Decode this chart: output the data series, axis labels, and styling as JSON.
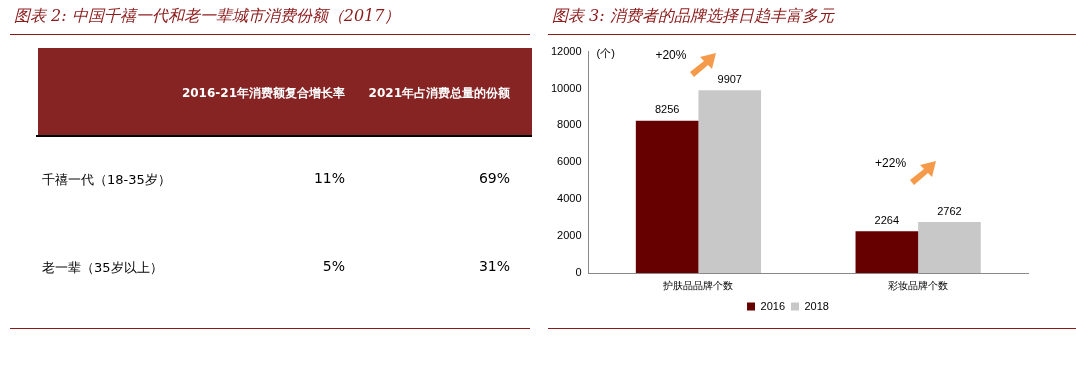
{
  "chart_data": [
    {
      "type": "other",
      "title": "图表 2:  中国千禧一代和老一辈城市消费份额（2017）",
      "categories": [
        "千禧一代（18-35岁）",
        "老一辈（35岁以上）"
      ],
      "series": [
        {
          "name": "2016-21年消费额复合增长率",
          "values": [
            11,
            5
          ],
          "value_labels": [
            "11%",
            "5%"
          ]
        },
        {
          "name": "2021年占消费总量的份额",
          "values": [
            69,
            31
          ],
          "value_labels": [
            "69%",
            "31%"
          ]
        }
      ]
    },
    {
      "type": "bar",
      "title": "图表 3:  消费者的品牌选择日趋丰富多元",
      "ylabel": "(个)",
      "categories": [
        "护肤品品牌个数",
        "彩妆品牌个数"
      ],
      "series": [
        {
          "name": "2016",
          "color": "#660000",
          "values": [
            8256,
            2264
          ]
        },
        {
          "name": "2018",
          "color": "#c8c8c8",
          "values": [
            9907,
            2762
          ]
        }
      ],
      "ylim": [
        0,
        12000
      ],
      "yticks": [
        0,
        2000,
        4000,
        6000,
        8000,
        10000,
        12000
      ],
      "data_labels": true,
      "legend": "bottom",
      "grid": false,
      "annotations": [
        "+20%",
        "+22%"
      ]
    }
  ]
}
